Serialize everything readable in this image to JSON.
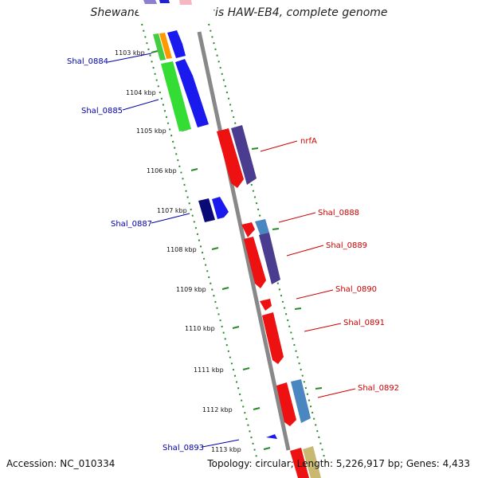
{
  "title": "Shewanella halifaxensis HAW-EB4, complete genome",
  "accession": "Accession: NC_010334",
  "summary": "Topology: circular; Length: 5,226,917 bp; Genes: 4,433",
  "ticks": [
    "1103 kbp",
    "1104 kbp",
    "1105 kbp",
    "1106 kbp",
    "1107 kbp",
    "1108 kbp",
    "1109 kbp",
    "1110 kbp",
    "1111 kbp",
    "1112 kbp",
    "1113 kbp"
  ],
  "gene_labels": {
    "left": [
      "Shal_0884",
      "Shal_0885",
      "Shal_0887",
      "Shal_0893"
    ],
    "right": [
      "nrfA",
      "Shal_0888",
      "Shal_0889",
      "Shal_0890",
      "Shal_0891",
      "Shal_0892"
    ]
  },
  "colors": {
    "backbone": "#888888",
    "minus_strand_label": "#0000aa",
    "plus_strand_label": "#cc0000",
    "tick_dots": "#2a8a2a"
  }
}
